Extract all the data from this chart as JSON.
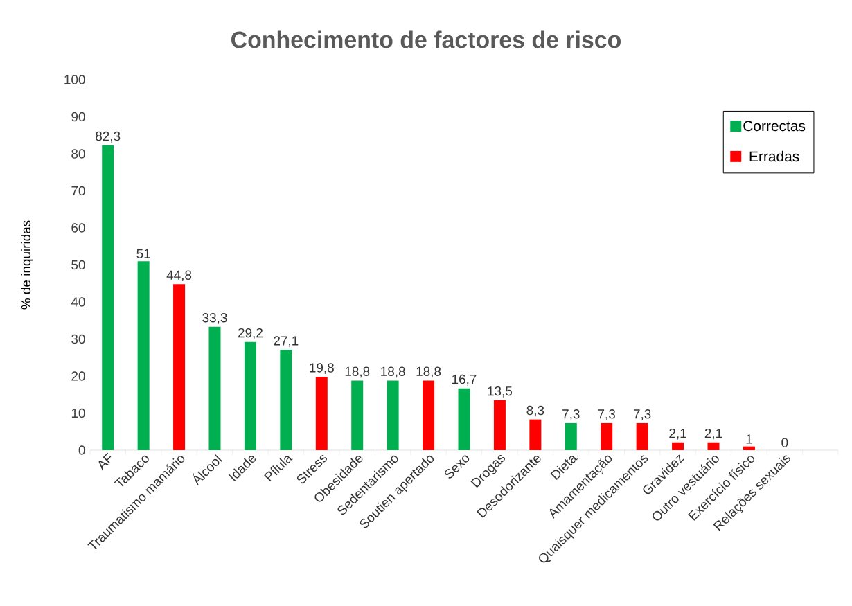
{
  "chart_data": {
    "type": "bar",
    "title": "Conhecimento de factores de risco",
    "ylabel": "% de inquiridas",
    "categories": [
      "AF",
      "Tabaco",
      "Traumatismo mamário",
      "Álcool",
      "Idade",
      "Pílula",
      "Stress",
      "Obesidade",
      "Sedentarismo",
      "Soutien apertado",
      "Sexo",
      "Drogas",
      "Desodorizante",
      "Dieta",
      "Amamentação",
      "Quaisquer medicamentos",
      "Gravidez",
      "Outro vestuário",
      "Exercício físico",
      "Relações sexuais",
      null
    ],
    "series": [
      {
        "name": "Correctas",
        "color": "#00b050",
        "values": [
          82.3,
          51,
          null,
          33.3,
          29.2,
          27.1,
          null,
          18.8,
          18.8,
          null,
          16.7,
          null,
          null,
          7.3,
          null,
          null,
          null,
          null,
          null,
          null,
          null
        ],
        "value_labels": [
          "82,3",
          "51",
          null,
          "33,3",
          "29,2",
          "27,1",
          null,
          "18,8",
          "18,8",
          null,
          "16,7",
          null,
          null,
          "7,3",
          null,
          null,
          null,
          null,
          null,
          null,
          null
        ]
      },
      {
        "name": "Erradas",
        "color": "#ff0000",
        "values": [
          null,
          null,
          44.8,
          null,
          null,
          null,
          19.8,
          null,
          null,
          18.8,
          null,
          13.5,
          8.3,
          null,
          7.3,
          7.3,
          2.1,
          2.1,
          1,
          0,
          null
        ],
        "value_labels": [
          null,
          null,
          "44,8",
          null,
          null,
          null,
          "19,8",
          null,
          null,
          "18,8",
          null,
          "13,5",
          "8,3",
          null,
          "7,3",
          "7,3",
          "2,1",
          "2,1",
          "1",
          "0",
          null
        ]
      }
    ],
    "ylim": [
      0,
      100
    ],
    "yticks": [
      0,
      10,
      20,
      30,
      40,
      50,
      60,
      70,
      80,
      90,
      100
    ],
    "legend": "top right"
  }
}
